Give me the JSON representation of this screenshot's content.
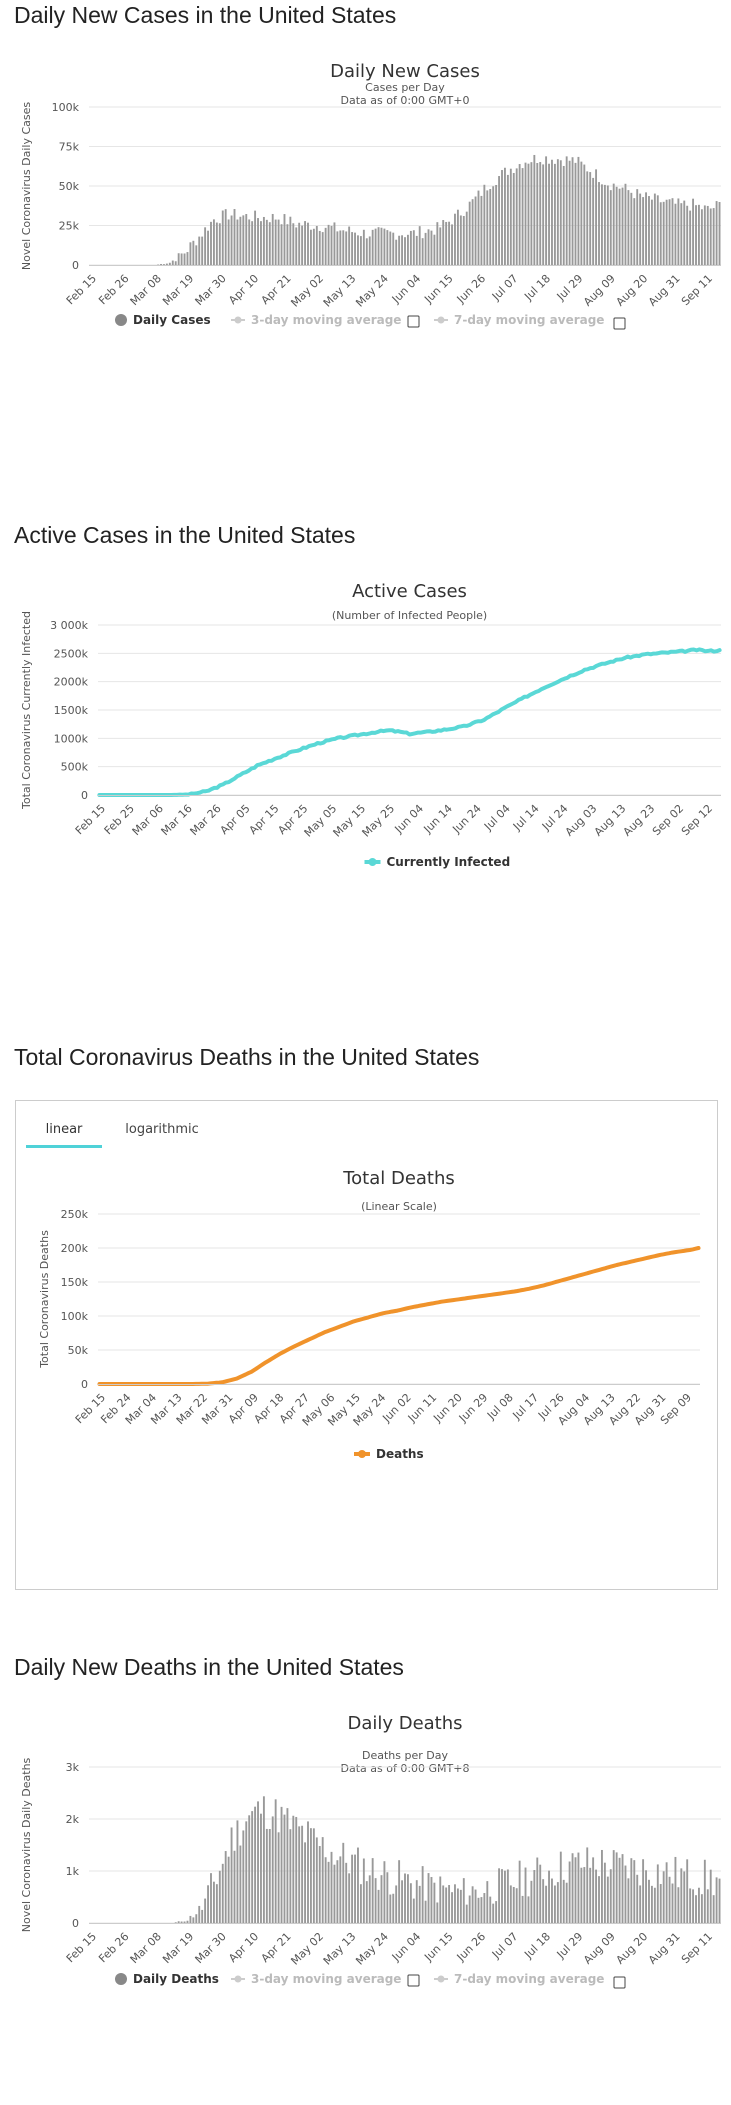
{
  "sections": [
    {
      "heading": "Daily New Cases in the United States"
    },
    {
      "heading": "Active Cases in the United States"
    },
    {
      "heading": "Total Coronavirus Deaths in the United States"
    },
    {
      "heading": "Daily New Deaths in the United States"
    }
  ],
  "tabs": {
    "linear": "linear",
    "log": "logarithmic"
  },
  "chart_data": [
    {
      "id": "daily-cases",
      "type": "bar",
      "title": "Daily New Cases",
      "subtitle": "Cases per Day",
      "subtitle2": "Data as of 0:00 GMT+0",
      "ylabel": "Novel Coronavirus Daily Cases",
      "ylim": [
        0,
        100000
      ],
      "yticks": [
        0,
        25000,
        50000,
        75000,
        100000
      ],
      "ytick_labels": [
        "0",
        "25k",
        "50k",
        "75k",
        "100k"
      ],
      "xtick_labels": [
        "Feb 15",
        "Feb 26",
        "Mar 08",
        "Mar 19",
        "Mar 30",
        "Apr 10",
        "Apr 21",
        "May 02",
        "May 13",
        "May 24",
        "Jun 04",
        "Jun 15",
        "Jun 26",
        "Jul 07",
        "Jul 18",
        "Jul 29",
        "Aug 09",
        "Aug 20",
        "Aug 31",
        "Sep 11"
      ],
      "anchors": [
        [
          0,
          0
        ],
        [
          22,
          0
        ],
        [
          27,
          1500
        ],
        [
          32,
          8000
        ],
        [
          37,
          18000
        ],
        [
          42,
          29000
        ],
        [
          47,
          32000
        ],
        [
          52,
          31000
        ],
        [
          58,
          30000
        ],
        [
          64,
          30000
        ],
        [
          70,
          26000
        ],
        [
          78,
          25000
        ],
        [
          86,
          22000
        ],
        [
          94,
          20000
        ],
        [
          102,
          20000
        ],
        [
          110,
          20000
        ],
        [
          118,
          23000
        ],
        [
          124,
          30000
        ],
        [
          130,
          40000
        ],
        [
          136,
          52000
        ],
        [
          142,
          60000
        ],
        [
          148,
          66000
        ],
        [
          153,
          68000
        ],
        [
          160,
          67000
        ],
        [
          165,
          66000
        ],
        [
          170,
          60000
        ],
        [
          176,
          52000
        ],
        [
          182,
          48000
        ],
        [
          188,
          43000
        ],
        [
          195,
          40000
        ],
        [
          200,
          38000
        ],
        [
          205,
          38000
        ],
        [
          210,
          35000
        ],
        [
          214,
          38000
        ]
      ],
      "noise": 4200,
      "legend": [
        "Daily Cases",
        "3-day moving average",
        "7-day moving average"
      ],
      "colors": {
        "bar": "#999999",
        "legend_on": "#888888",
        "legend_off": "#cccccc"
      }
    },
    {
      "id": "active-cases",
      "type": "line",
      "title": "Active Cases",
      "subtitle": "(Number of Infected People)",
      "ylabel": "Total Coronavirus Currently Infected",
      "ylim": [
        0,
        3000000
      ],
      "yticks": [
        0,
        500000,
        1000000,
        1500000,
        2000000,
        2500000,
        3000000
      ],
      "ytick_labels": [
        "0",
        "500k",
        "1000k",
        "1500k",
        "2000k",
        "2500k",
        "3 000k"
      ],
      "xtick_labels": [
        "Feb 15",
        "Feb 25",
        "Mar 06",
        "Mar 16",
        "Mar 26",
        "Apr 05",
        "Apr 15",
        "Apr 25",
        "May 05",
        "May 15",
        "May 25",
        "Jun 04",
        "Jun 14",
        "Jun 24",
        "Jul 04",
        "Jul 14",
        "Jul 24",
        "Aug 03",
        "Aug 13",
        "Aug 23",
        "Sep 02",
        "Sep 12"
      ],
      "anchors": [
        [
          0,
          0
        ],
        [
          25,
          0
        ],
        [
          31,
          10000
        ],
        [
          37,
          60000
        ],
        [
          43,
          180000
        ],
        [
          49,
          350000
        ],
        [
          55,
          520000
        ],
        [
          62,
          660000
        ],
        [
          69,
          790000
        ],
        [
          76,
          910000
        ],
        [
          83,
          1000000
        ],
        [
          90,
          1060000
        ],
        [
          96,
          1110000
        ],
        [
          101,
          1140000
        ],
        [
          105,
          1110000
        ],
        [
          108,
          1080000
        ],
        [
          114,
          1110000
        ],
        [
          120,
          1150000
        ],
        [
          127,
          1210000
        ],
        [
          134,
          1330000
        ],
        [
          141,
          1530000
        ],
        [
          148,
          1720000
        ],
        [
          155,
          1900000
        ],
        [
          162,
          2060000
        ],
        [
          169,
          2210000
        ],
        [
          176,
          2320000
        ],
        [
          183,
          2420000
        ],
        [
          190,
          2480000
        ],
        [
          197,
          2510000
        ],
        [
          204,
          2540000
        ],
        [
          208,
          2560000
        ],
        [
          212,
          2540000
        ],
        [
          216,
          2550000
        ]
      ],
      "noise": 15000,
      "legend": [
        "Currently Infected"
      ],
      "colors": {
        "line": "#5ad8d6"
      }
    },
    {
      "id": "total-deaths",
      "type": "line",
      "title": "Total Deaths",
      "subtitle": "(Linear Scale)",
      "ylabel": "Total Coronavirus Deaths",
      "ylim": [
        0,
        250000
      ],
      "yticks": [
        0,
        50000,
        100000,
        150000,
        200000,
        250000
      ],
      "ytick_labels": [
        "0",
        "50k",
        "100k",
        "150k",
        "200k",
        "250k"
      ],
      "xtick_labels": [
        "Feb 15",
        "Feb 24",
        "Mar 04",
        "Mar 13",
        "Mar 22",
        "Mar 31",
        "Apr 09",
        "Apr 18",
        "Apr 27",
        "May 06",
        "May 15",
        "May 24",
        "Jun 02",
        "Jun 11",
        "Jun 20",
        "Jun 29",
        "Jul 08",
        "Jul 17",
        "Jul 26",
        "Aug 04",
        "Aug 13",
        "Aug 22",
        "Aug 31",
        "Sep 09"
      ],
      "anchors": [
        [
          0,
          0
        ],
        [
          32,
          0
        ],
        [
          37,
          500
        ],
        [
          42,
          2500
        ],
        [
          47,
          8000
        ],
        [
          52,
          18000
        ],
        [
          57,
          32000
        ],
        [
          62,
          45000
        ],
        [
          67,
          56000
        ],
        [
          72,
          66000
        ],
        [
          77,
          76000
        ],
        [
          82,
          84000
        ],
        [
          87,
          92000
        ],
        [
          92,
          98000
        ],
        [
          97,
          104000
        ],
        [
          102,
          108000
        ],
        [
          107,
          113000
        ],
        [
          112,
          117000
        ],
        [
          117,
          121000
        ],
        [
          122,
          124000
        ],
        [
          127,
          127000
        ],
        [
          132,
          130000
        ],
        [
          137,
          133000
        ],
        [
          142,
          136000
        ],
        [
          147,
          140000
        ],
        [
          152,
          145000
        ],
        [
          157,
          151000
        ],
        [
          162,
          157000
        ],
        [
          167,
          163000
        ],
        [
          172,
          169000
        ],
        [
          177,
          175000
        ],
        [
          182,
          180000
        ],
        [
          187,
          185000
        ],
        [
          192,
          190000
        ],
        [
          197,
          194000
        ],
        [
          202,
          197000
        ],
        [
          205,
          200000
        ]
      ],
      "noise": 0,
      "legend": [
        "Deaths"
      ],
      "colors": {
        "line": "#f0932b"
      }
    },
    {
      "id": "daily-deaths",
      "type": "bar",
      "title": "Daily Deaths",
      "subtitle": "Deaths per Day",
      "subtitle2": "Data as of 0:00 GMT+8",
      "ylabel": "Novel Coronavirus Daily Deaths",
      "ylim": [
        0,
        3000
      ],
      "yticks": [
        0,
        1000,
        2000,
        3000
      ],
      "ytick_labels": [
        "0",
        "1k",
        "2k",
        "3k"
      ],
      "xtick_labels": [
        "Feb 15",
        "Feb 26",
        "Mar 08",
        "Mar 19",
        "Mar 30",
        "Apr 10",
        "Apr 21",
        "May 02",
        "May 13",
        "May 24",
        "Jun 04",
        "Jun 15",
        "Jun 26",
        "Jul 07",
        "Jul 18",
        "Jul 29",
        "Aug 09",
        "Aug 20",
        "Aug 31",
        "Sep 11"
      ],
      "anchors": [
        [
          0,
          0
        ],
        [
          28,
          0
        ],
        [
          33,
          60
        ],
        [
          38,
          300
        ],
        [
          43,
          900
        ],
        [
          48,
          1600
        ],
        [
          53,
          2000
        ],
        [
          58,
          2200
        ],
        [
          63,
          2100
        ],
        [
          68,
          1900
        ],
        [
          73,
          1700
        ],
        [
          78,
          1500
        ],
        [
          84,
          1300
        ],
        [
          90,
          1150
        ],
        [
          96,
          1000
        ],
        [
          102,
          900
        ],
        [
          108,
          800
        ],
        [
          114,
          720
        ],
        [
          120,
          650
        ],
        [
          126,
          600
        ],
        [
          132,
          620
        ],
        [
          138,
          700
        ],
        [
          144,
          800
        ],
        [
          150,
          900
        ],
        [
          156,
          1000
        ],
        [
          162,
          1100
        ],
        [
          168,
          1150
        ],
        [
          174,
          1150
        ],
        [
          180,
          1100
        ],
        [
          186,
          1050
        ],
        [
          192,
          1000
        ],
        [
          198,
          950
        ],
        [
          204,
          900
        ],
        [
          210,
          850
        ],
        [
          214,
          800
        ]
      ],
      "noise": 380,
      "legend": [
        "Daily Deaths",
        "3-day moving average",
        "7-day moving average"
      ],
      "colors": {
        "bar": "#999999",
        "legend_on": "#888888",
        "legend_off": "#cccccc"
      }
    }
  ]
}
